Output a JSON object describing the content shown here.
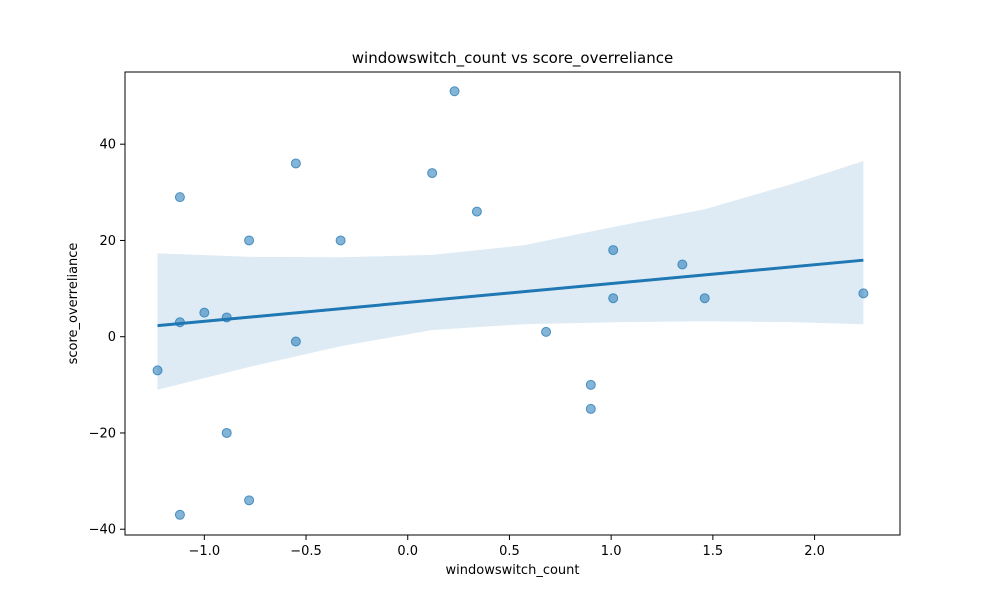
{
  "chart_data": {
    "type": "scatter",
    "title": "windowswitch_count vs score_overreliance",
    "xlabel": "windowswitch_count",
    "ylabel": "score_overreliance",
    "xlim": [
      -1.39,
      2.42
    ],
    "ylim": [
      -41.2,
      55.0
    ],
    "xticks": [
      -1.0,
      -0.5,
      0.0,
      0.5,
      1.0,
      1.5,
      2.0
    ],
    "xtick_labels": [
      "−1.0",
      "−0.5",
      "0.0",
      "0.5",
      "1.0",
      "1.5",
      "2.0"
    ],
    "yticks": [
      -40,
      -20,
      0,
      20,
      40
    ],
    "ytick_labels": [
      "−40",
      "−20",
      "0",
      "20",
      "40"
    ],
    "grid": false,
    "point_color": "#1f77b4",
    "band_color": "#1f77b4",
    "points": [
      {
        "x": -1.23,
        "y": -7
      },
      {
        "x": -1.12,
        "y": 29
      },
      {
        "x": -1.12,
        "y": 3
      },
      {
        "x": -1.12,
        "y": -37
      },
      {
        "x": -1.0,
        "y": 5
      },
      {
        "x": -0.89,
        "y": 4
      },
      {
        "x": -0.89,
        "y": -20
      },
      {
        "x": -0.78,
        "y": 20
      },
      {
        "x": -0.78,
        "y": -34
      },
      {
        "x": -0.55,
        "y": 36
      },
      {
        "x": -0.55,
        "y": -1
      },
      {
        "x": -0.33,
        "y": 20
      },
      {
        "x": 0.12,
        "y": 34
      },
      {
        "x": 0.23,
        "y": 51
      },
      {
        "x": 0.34,
        "y": 26
      },
      {
        "x": 0.68,
        "y": 1
      },
      {
        "x": 0.9,
        "y": -10
      },
      {
        "x": 0.9,
        "y": -15
      },
      {
        "x": 1.01,
        "y": 18
      },
      {
        "x": 1.01,
        "y": 8
      },
      {
        "x": 1.35,
        "y": 15
      },
      {
        "x": 1.46,
        "y": 8
      },
      {
        "x": 2.24,
        "y": 9
      }
    ],
    "regression_line": [
      {
        "x": -1.23,
        "y": 2.3
      },
      {
        "x": 2.24,
        "y": 15.9
      }
    ],
    "confidence_band": {
      "x": [
        -1.23,
        -0.78,
        -0.33,
        0.12,
        0.57,
        1.01,
        1.46,
        1.91,
        2.24
      ],
      "lower": [
        -11.0,
        -6.3,
        -2.0,
        1.4,
        2.6,
        3.0,
        3.2,
        3.0,
        2.6
      ],
      "upper": [
        17.3,
        16.6,
        16.5,
        17.0,
        19.0,
        22.8,
        26.5,
        32.0,
        36.5
      ]
    }
  }
}
